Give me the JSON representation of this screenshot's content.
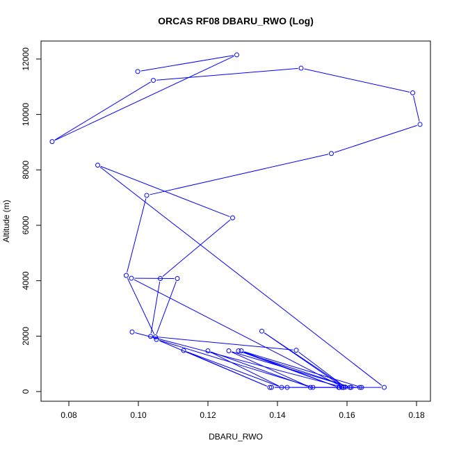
{
  "chart_data": {
    "type": "line",
    "title": "ORCAS RF08 DBARU_RWO (Log)",
    "xlabel": "DBARU_RWO",
    "ylabel": "Altitude (m)",
    "xlim": [
      0.072,
      0.184
    ],
    "ylim": [
      -350,
      12650
    ],
    "xticks": [
      0.08,
      0.1,
      0.12,
      0.14,
      0.16,
      0.18
    ],
    "xtick_labels": [
      "0.08",
      "0.10",
      "0.12",
      "0.14",
      "0.16",
      "0.18"
    ],
    "yticks": [
      0,
      2000,
      4000,
      6000,
      8000,
      10000,
      12000
    ],
    "ytick_labels": [
      "0",
      "2000",
      "4000",
      "6000",
      "8000",
      "10000",
      "12000"
    ],
    "grid": false,
    "color": "#0000ff",
    "marker": "open-circle",
    "series": [
      {
        "points": [
          [
            0.0998,
            11550
          ],
          [
            0.1283,
            12150
          ],
          [
            0.0752,
            9020
          ],
          [
            0.1043,
            11230
          ],
          [
            0.1468,
            11670
          ],
          [
            0.1789,
            10780
          ],
          [
            0.181,
            9640
          ],
          [
            0.1555,
            8590
          ],
          [
            0.1024,
            7080
          ],
          [
            0.0965,
            4190
          ],
          [
            0.1049,
            1970
          ],
          [
            0.1112,
            4080
          ],
          [
            0.098,
            4090
          ],
          [
            0.159,
            150
          ],
          [
            0.1355,
            2180
          ],
          [
            0.1595,
            160
          ],
          [
            0.1454,
            1490
          ],
          [
            0.1035,
            1990
          ],
          [
            0.1063,
            4080
          ],
          [
            0.1271,
            6270
          ],
          [
            0.0883,
            8170
          ],
          [
            0.1707,
            150
          ],
          [
            0.1502,
            150
          ],
          [
            0.1052,
            1880
          ],
          [
            0.1378,
            150
          ],
          [
            0.113,
            1480
          ],
          [
            0.1412,
            150
          ],
          [
            0.12,
            1470
          ],
          [
            0.1495,
            150
          ],
          [
            0.126,
            1470
          ],
          [
            0.1612,
            150
          ],
          [
            0.1288,
            1470
          ],
          [
            0.1576,
            150
          ],
          [
            0.1296,
            1470
          ],
          [
            0.1642,
            150
          ],
          [
            0.1383,
            150
          ],
          [
            0.1428,
            150
          ],
          [
            0.1585,
            150
          ],
          [
            0.1578,
            150
          ],
          [
            0.1637,
            150
          ],
          [
            0.1608,
            150
          ],
          [
            0.159,
            150
          ],
          [
            0.0982,
            2150
          ]
        ]
      }
    ]
  }
}
